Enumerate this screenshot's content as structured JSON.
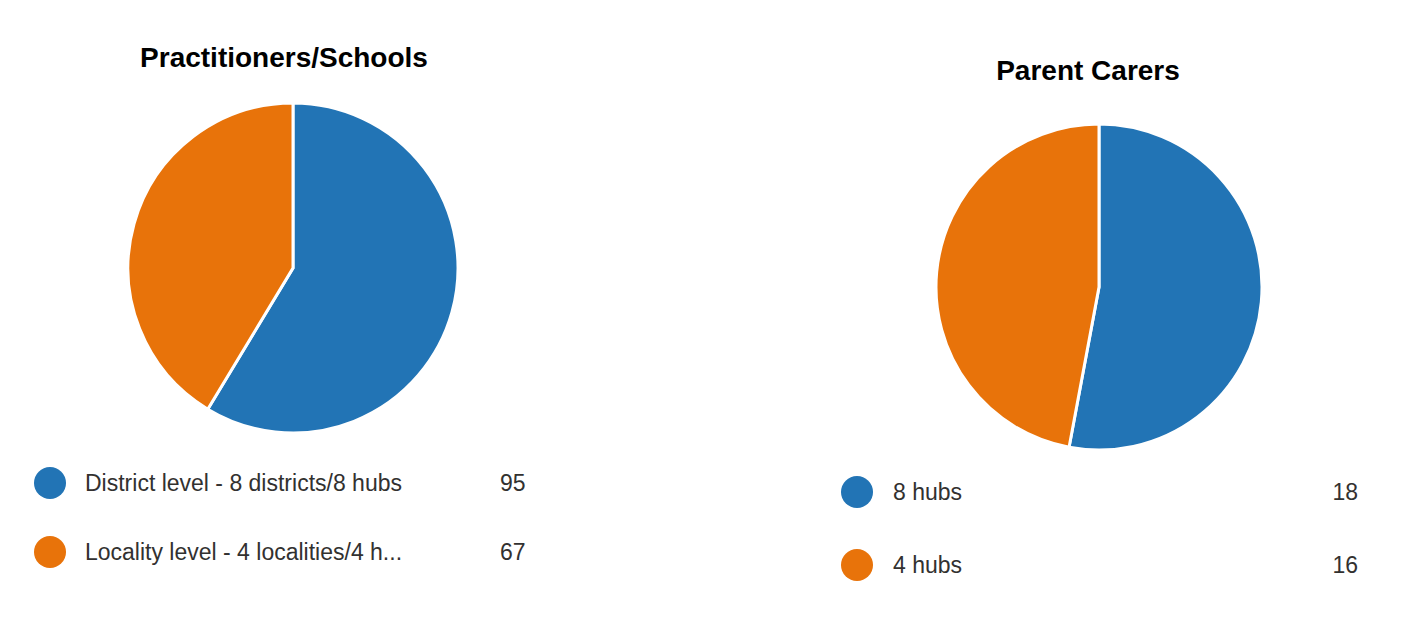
{
  "chart_data": [
    {
      "type": "pie",
      "title": "Practitioners/Schools",
      "categories": [
        "District level - 8 districts/8 hubs",
        "Locality level - 4 localities/4 h..."
      ],
      "values": [
        95,
        67
      ],
      "colors": [
        "#2274b5",
        "#e8730a"
      ],
      "legend": "bottom"
    },
    {
      "type": "pie",
      "title": "Parent Carers",
      "categories": [
        "8 hubs",
        "4 hubs"
      ],
      "values": [
        18,
        16
      ],
      "colors": [
        "#2274b5",
        "#e8730a"
      ],
      "legend": "bottom"
    }
  ]
}
